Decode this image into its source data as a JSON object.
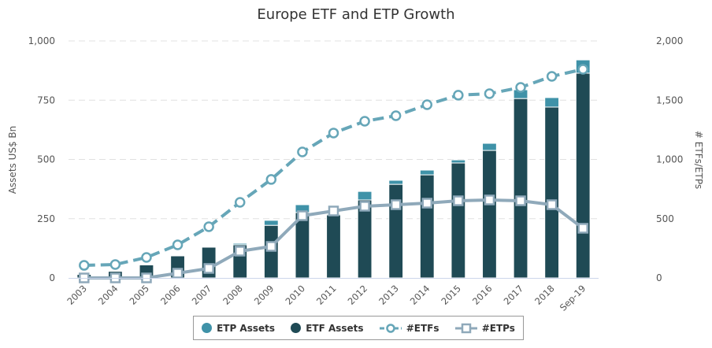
{
  "chart_data": {
    "type": "bar+line",
    "title": "Europe ETF and ETP Growth",
    "categories": [
      "2003",
      "2004",
      "2005",
      "2006",
      "2007",
      "2008",
      "2009",
      "2010",
      "2011",
      "2012",
      "2013",
      "2014",
      "2015",
      "2016",
      "2017",
      "2018",
      "Sep-19"
    ],
    "ylabel_left": "Assets US$ Bn",
    "ylabel_right": "# ETFs/ETPs",
    "ylim_left": [
      0,
      1000
    ],
    "ylim_right": [
      0,
      2000
    ],
    "yticks_left": [
      "0",
      "250",
      "500",
      "750",
      "1,000"
    ],
    "yticks_right": [
      "0",
      "500",
      "1,000",
      "1,500",
      "2,000"
    ],
    "grid": true,
    "legend_position": "bottom",
    "series": [
      {
        "name": "ETP Assets",
        "type": "bar",
        "stack": "assets",
        "axis": "left",
        "color": "#3f92a8",
        "values": [
          2,
          2,
          1,
          1,
          1,
          6,
          21,
          33,
          4,
          36,
          17,
          20,
          13,
          30,
          37,
          40,
          56
        ]
      },
      {
        "name": "ETF Assets",
        "type": "bar",
        "stack": "assets",
        "axis": "left",
        "color": "#1f4a55",
        "values": [
          15,
          28,
          55,
          93,
          130,
          140,
          222,
          276,
          266,
          329,
          395,
          435,
          485,
          538,
          757,
          721,
          864
        ]
      },
      {
        "name": "#ETFs",
        "type": "line",
        "axis": "right",
        "color": "#66a6b8",
        "dash": true,
        "marker": "circle",
        "values": [
          106,
          113,
          173,
          279,
          432,
          638,
          831,
          1063,
          1223,
          1322,
          1369,
          1462,
          1542,
          1555,
          1608,
          1701,
          1761
        ]
      },
      {
        "name": "#ETPs",
        "type": "line",
        "axis": "right",
        "color": "#8fa9ba",
        "dash": false,
        "marker": "square",
        "values": [
          0,
          0,
          0,
          40,
          80,
          226,
          266,
          525,
          565,
          605,
          618,
          631,
          651,
          658,
          651,
          618,
          419
        ]
      }
    ]
  }
}
